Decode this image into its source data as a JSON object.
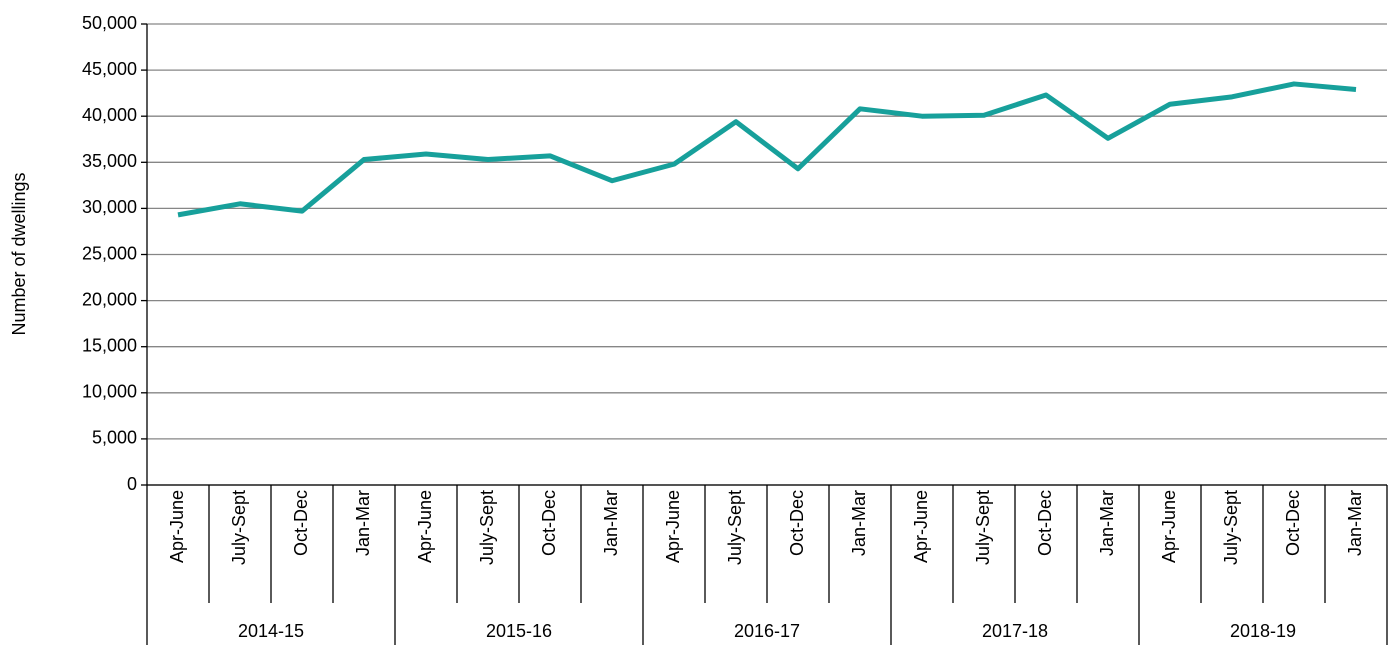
{
  "chart_data": {
    "type": "line",
    "y_label": "Number of dwellings",
    "categories": [
      "Apr-June",
      "July-Sept",
      "Oct-Dec",
      "Jan-Mar",
      "Apr-June",
      "July-Sept",
      "Oct-Dec",
      "Jan-Mar",
      "Apr-June",
      "July-Sept",
      "Oct-Dec",
      "Jan-Mar",
      "Apr-June",
      "July-Sept",
      "Oct-Dec",
      "Jan-Mar",
      "Apr-June",
      "July-Sept",
      "Oct-Dec",
      "Jan-Mar"
    ],
    "groups": [
      "2014-15",
      "2015-16",
      "2016-17",
      "2017-18",
      "2018-19"
    ],
    "values": [
      29300,
      30500,
      29700,
      35300,
      35900,
      35300,
      35700,
      33000,
      34800,
      39400,
      34300,
      40800,
      40000,
      40100,
      42300,
      37600,
      41300,
      42100,
      43500,
      42900
    ],
    "color": "#17a09b",
    "ylim": [
      0,
      50000
    ],
    "yticks": [
      0,
      {
        "value": 5000,
        "label": "5,000"
      },
      {
        "value": 10000,
        "label": "10,000"
      },
      {
        "value": 15000,
        "label": "15,000"
      },
      {
        "value": 20000,
        "label": "20,000"
      },
      {
        "value": 25000,
        "label": "25,000"
      },
      {
        "value": 30000,
        "label": "30,000"
      },
      {
        "value": 35000,
        "label": "35,000"
      },
      {
        "value": 40000,
        "label": "40,000"
      },
      {
        "value": 45000,
        "label": "45,000"
      },
      {
        "value": 50000,
        "label": "50,000"
      }
    ],
    "grid": true
  }
}
